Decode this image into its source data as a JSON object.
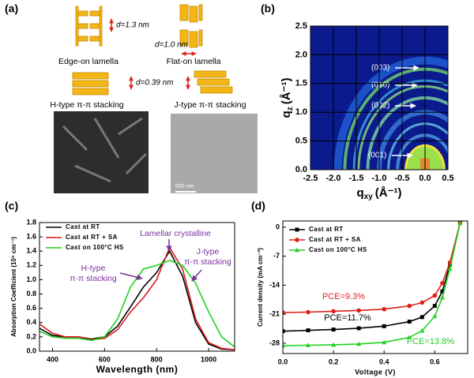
{
  "panel_labels": [
    "(a)",
    "(b)",
    "(c)",
    "(d)"
  ],
  "panel_a": {
    "edge_on": {
      "spacing": "d=1.3 nm",
      "caption": "Edge-on lamella"
    },
    "flat_on": {
      "spacing": "d=1.0 nm",
      "caption": "Flat-on lamella"
    },
    "h_type": {
      "spacing": "d=0.39 nm",
      "caption": "H-type π-π stacking"
    },
    "j_type": {
      "caption": "J-type π-π stacking"
    },
    "scale_bar": "500 nm"
  },
  "chart_data": [
    {
      "type": "image",
      "xlabel": {
        "symbol": "q",
        "subscript": "xy",
        "unit": "(Å⁻¹)"
      },
      "ylabel": {
        "symbol": "q",
        "subscript": "z",
        "unit": "(Å⁻¹)"
      },
      "xlim": [
        -2.5,
        0.5
      ],
      "ylim": [
        0,
        2.5
      ],
      "xticks": [
        -2.5,
        {
          "value": -2,
          "label": "-2.0"
        },
        -1.5,
        {
          "value": -1,
          "label": "-1.0"
        },
        -0.5,
        {
          "value": 0,
          "label": "0.0"
        },
        0.5
      ],
      "yticks": [
        {
          "value": 0,
          "label": "0.0"
        },
        0.5,
        {
          "value": 1,
          "label": "1.0"
        },
        1.5,
        {
          "value": 2,
          "label": "2.0"
        },
        2.5
      ],
      "grid": true,
      "annotations": [
        "(003)",
        "(010)",
        "(002)",
        "(001)"
      ]
    },
    {
      "type": "line",
      "xlabel": "Wavelength (nm)",
      "ylabel": "Absorption Coefficient (10⁵ cm⁻¹)",
      "xlim": [
        350,
        1100
      ],
      "ylim": [
        0,
        1.8
      ],
      "xticks": [
        400,
        600,
        800,
        1000
      ],
      "yticks": [
        {
          "value": 0,
          "label": "0.0"
        },
        0.2,
        0.4,
        0.6,
        0.8,
        {
          "value": 1,
          "label": "1.0"
        },
        1.2,
        1.4,
        1.6,
        1.8
      ],
      "x": [
        350,
        400,
        450,
        500,
        550,
        600,
        650,
        700,
        750,
        800,
        850,
        900,
        950,
        1000,
        1050,
        1100
      ],
      "series": [
        {
          "name": "Cast at RT",
          "color": "#000000",
          "values": [
            0.32,
            0.22,
            0.2,
            0.2,
            0.17,
            0.2,
            0.35,
            0.62,
            0.9,
            1.1,
            1.4,
            1.05,
            0.4,
            0.1,
            0.03,
            0.02
          ]
        },
        {
          "name": "Cast at RT + SA",
          "color": "#d7191c",
          "values": [
            0.38,
            0.25,
            0.2,
            0.2,
            0.16,
            0.18,
            0.3,
            0.55,
            0.75,
            1.0,
            1.45,
            1.15,
            0.45,
            0.12,
            0.04,
            0.02
          ]
        },
        {
          "name": "Cast on 100°C HS",
          "color": "#22d11e",
          "values": [
            0.28,
            0.2,
            0.18,
            0.18,
            0.15,
            0.2,
            0.45,
            0.9,
            1.15,
            1.2,
            1.27,
            1.2,
            0.95,
            0.55,
            0.2,
            0.06
          ]
        }
      ],
      "annotation_color": "#7a2f9e",
      "annotations": [
        "Lamellar crystalline",
        "H-type",
        "π-π stacking",
        "J-type",
        "π-π stacking"
      ]
    },
    {
      "type": "line",
      "xlabel": "Voltage (V)",
      "ylabel": "Current density (mA cm⁻²)",
      "xlim": [
        0,
        0.73
      ],
      "ylim": [
        -30.5,
        1.5
      ],
      "xticks": [
        {
          "value": 0,
          "label": "0.0"
        },
        0.2,
        0.4,
        0.6
      ],
      "yticks": [
        0,
        -7,
        -14,
        -21,
        -28
      ],
      "x": [
        0,
        0.1,
        0.2,
        0.3,
        0.4,
        0.5,
        0.55,
        0.6,
        0.63,
        0.66,
        0.7
      ],
      "series": [
        {
          "name": "Cast at RT",
          "color": "#000000",
          "marker": "square",
          "values": [
            -25.1,
            -24.9,
            -24.7,
            -24.4,
            -23.9,
            -22.8,
            -21.7,
            -19.0,
            -15.5,
            -9.0,
            1.0
          ]
        },
        {
          "name": "Cast at RT + SA",
          "color": "#e0201b",
          "marker": "circle",
          "values": [
            -20.6,
            -20.5,
            -20.3,
            -20.1,
            -19.8,
            -19.0,
            -18.2,
            -16.5,
            -13.5,
            -8.5,
            1.0
          ]
        },
        {
          "name": "Cast on 100°C HS",
          "color": "#22d11e",
          "marker": "triangle",
          "values": [
            -28.6,
            -28.5,
            -28.4,
            -28.2,
            -27.8,
            -26.6,
            -25.0,
            -21.5,
            -17.0,
            -10.0,
            1.0
          ]
        }
      ],
      "annotations": [
        {
          "text": "PCE=9.3%",
          "color": "#e0201b"
        },
        {
          "text": "PCE=11.7%",
          "color": "#000000"
        },
        {
          "text": "PCE=13.8%",
          "color": "#22d11e"
        }
      ]
    }
  ]
}
